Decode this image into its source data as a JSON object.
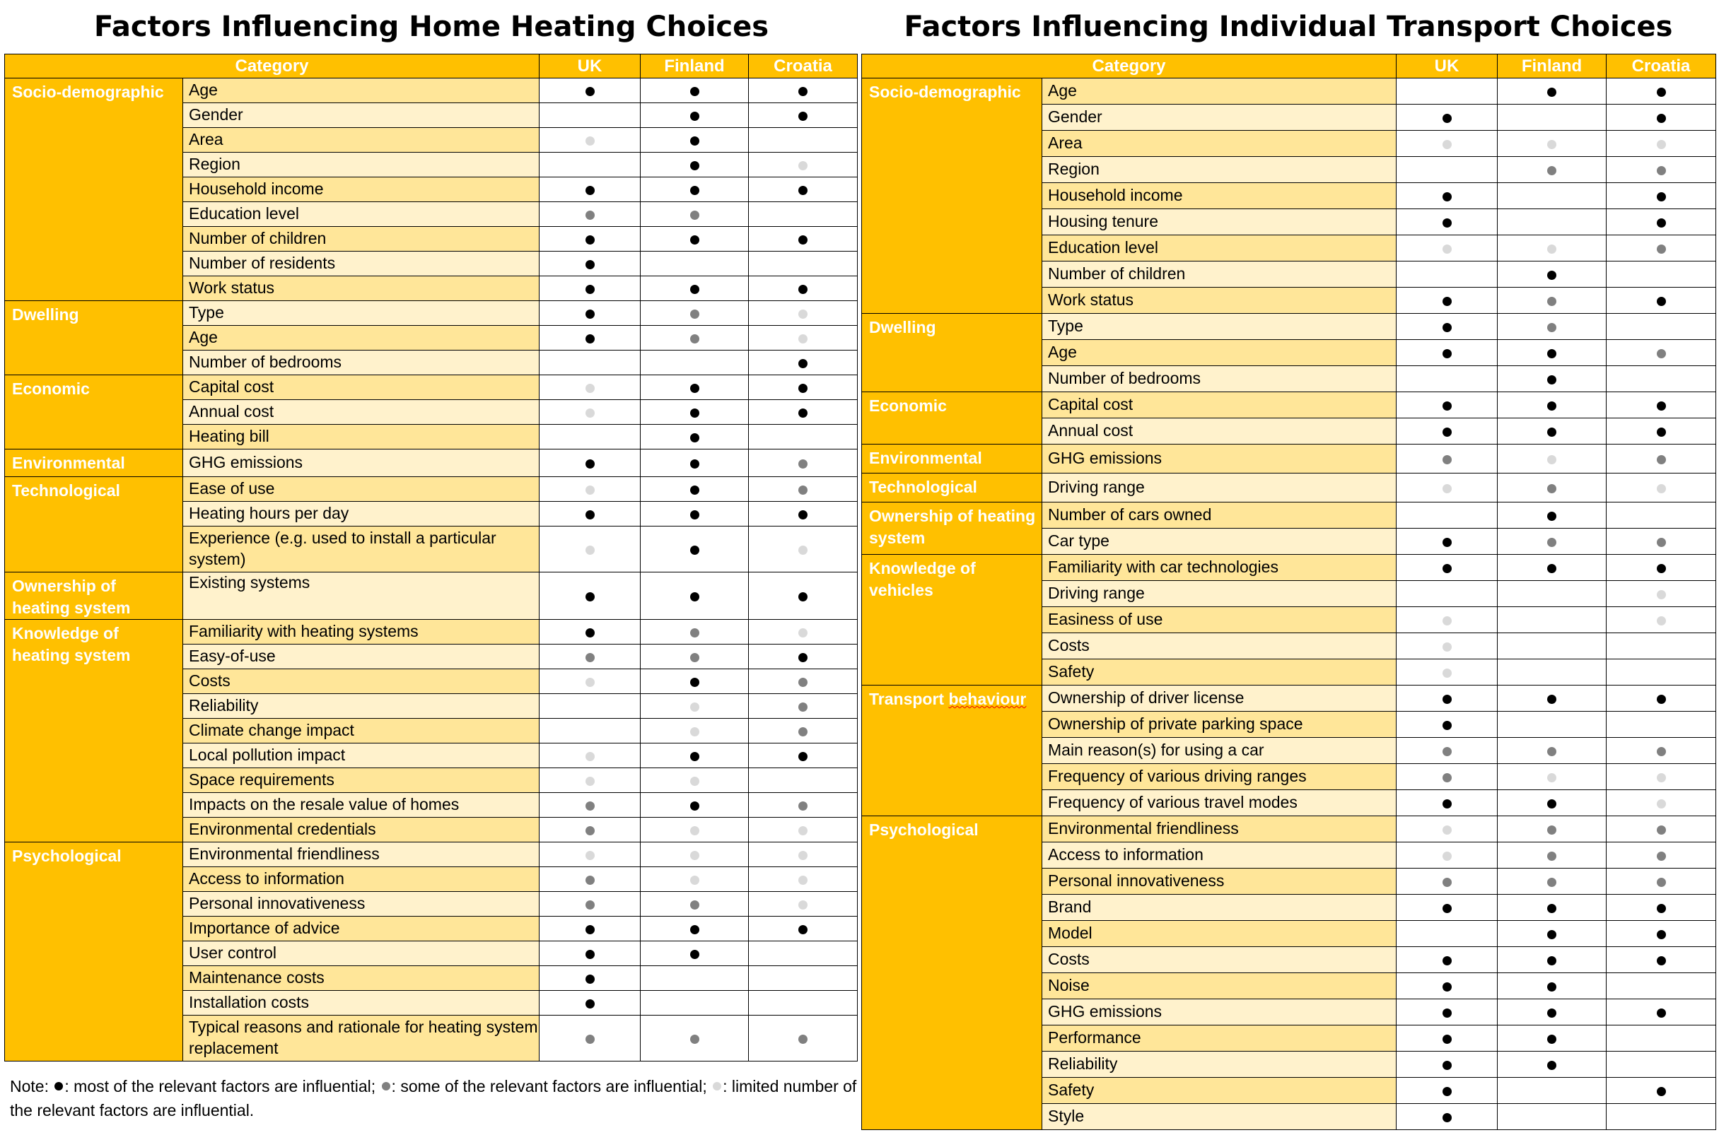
{
  "legend_colors": {
    "strong": "#000000",
    "medium": "#808080",
    "limited": "#D9D9D9"
  },
  "accent_color": "#FFC000",
  "heating": {
    "title": "Factors Influencing Home Heating Choices",
    "headers": {
      "category": "Category",
      "uk": "UK",
      "finland": "Finland",
      "croatia": "Croatia"
    },
    "groups": [
      {
        "category": "Socio-demographic",
        "rows": [
          {
            "factor": "Age",
            "marks": [
              "strong",
              "strong",
              "strong"
            ]
          },
          {
            "factor": "Gender",
            "marks": [
              "",
              "strong",
              "strong"
            ]
          },
          {
            "factor": "Area",
            "marks": [
              "limited",
              "strong",
              ""
            ]
          },
          {
            "factor": "Region",
            "marks": [
              "",
              "strong",
              "limited"
            ]
          },
          {
            "factor": "Household income",
            "marks": [
              "strong",
              "strong",
              "strong"
            ]
          },
          {
            "factor": "Education level",
            "marks": [
              "medium",
              "medium",
              ""
            ]
          },
          {
            "factor": "Number of children",
            "marks": [
              "strong",
              "strong",
              "strong"
            ]
          },
          {
            "factor": "Number of residents",
            "marks": [
              "strong",
              "",
              ""
            ]
          },
          {
            "factor": "Work status",
            "marks": [
              "strong",
              "strong",
              "strong"
            ]
          }
        ]
      },
      {
        "category": "Dwelling",
        "rows": [
          {
            "factor": "Type",
            "marks": [
              "strong",
              "medium",
              "limited"
            ]
          },
          {
            "factor": "Age",
            "marks": [
              "strong",
              "medium",
              "limited"
            ]
          },
          {
            "factor": "Number of bedrooms",
            "marks": [
              "",
              "",
              "strong"
            ]
          }
        ]
      },
      {
        "category": "Economic",
        "rows": [
          {
            "factor": "Capital cost",
            "marks": [
              "limited",
              "strong",
              "strong"
            ]
          },
          {
            "factor": "Annual cost",
            "marks": [
              "limited",
              "strong",
              "strong"
            ]
          },
          {
            "factor": "Heating bill",
            "marks": [
              "",
              "strong",
              ""
            ]
          }
        ]
      },
      {
        "category": "Environmental",
        "rows": [
          {
            "factor": "GHG emissions",
            "marks": [
              "strong",
              "strong",
              "medium"
            ]
          }
        ]
      },
      {
        "category": "Technological",
        "rows": [
          {
            "factor": "Ease of use",
            "marks": [
              "limited",
              "strong",
              "medium"
            ]
          },
          {
            "factor": "Heating hours per day",
            "marks": [
              "strong",
              "strong",
              "strong"
            ]
          },
          {
            "factor": "Experience (e.g. used to install a particular system)",
            "marks": [
              "limited",
              "strong",
              "limited"
            ],
            "tall": true
          }
        ]
      },
      {
        "category": "Ownership of heating system",
        "rows": [
          {
            "factor": "Existing systems",
            "marks": [
              "strong",
              "strong",
              "strong"
            ],
            "tall": true,
            "top": true
          }
        ]
      },
      {
        "category": "Knowledge of heating system",
        "rows": [
          {
            "factor": "Familiarity with heating systems",
            "marks": [
              "strong",
              "medium",
              "limited"
            ]
          },
          {
            "factor": "Easy-of-use",
            "marks": [
              "medium",
              "medium",
              "strong"
            ]
          },
          {
            "factor": "Costs",
            "marks": [
              "limited",
              "strong",
              "medium"
            ]
          },
          {
            "factor": "Reliability",
            "marks": [
              "",
              "limited",
              "medium"
            ]
          },
          {
            "factor": "Climate change impact",
            "marks": [
              "",
              "limited",
              "medium"
            ]
          },
          {
            "factor": "Local pollution impact",
            "marks": [
              "limited",
              "strong",
              "strong"
            ]
          },
          {
            "factor": "Space requirements",
            "marks": [
              "limited",
              "limited",
              ""
            ]
          },
          {
            "factor": "Impacts on the resale value of homes",
            "marks": [
              "medium",
              "strong",
              "medium"
            ]
          },
          {
            "factor": "Environmental credentials",
            "marks": [
              "medium",
              "limited",
              "limited"
            ]
          }
        ]
      },
      {
        "category": "Psychological",
        "rows": [
          {
            "factor": "Environmental friendliness",
            "marks": [
              "limited",
              "limited",
              "limited"
            ]
          },
          {
            "factor": "Access to information",
            "marks": [
              "medium",
              "limited",
              "limited"
            ]
          },
          {
            "factor": "Personal innovativeness",
            "marks": [
              "medium",
              "medium",
              "limited"
            ]
          },
          {
            "factor": "Importance of advice",
            "marks": [
              "strong",
              "strong",
              "strong"
            ]
          },
          {
            "factor": "User control",
            "marks": [
              "strong",
              "strong",
              ""
            ]
          },
          {
            "factor": "Maintenance costs",
            "marks": [
              "strong",
              "",
              ""
            ]
          },
          {
            "factor": "Installation costs",
            "marks": [
              "strong",
              "",
              ""
            ]
          },
          {
            "factor": "Typical reasons and rationale for heating system replacement",
            "marks": [
              "medium",
              "medium",
              "medium"
            ],
            "tall": true
          }
        ]
      }
    ],
    "note": {
      "prefix": "Note: ",
      "strong_text": ": most of the relevant factors are influential; ",
      "medium_text": ": some of the relevant factors are influential; ",
      "limited_text": ": limited number of the relevant factors are influential."
    }
  },
  "transport": {
    "title": "Factors Influencing Individual Transport Choices",
    "headers": {
      "category": "Category",
      "uk": "UK",
      "finland": "Finland",
      "croatia": "Croatia"
    },
    "groups": [
      {
        "category": "Socio-demographic",
        "rows": [
          {
            "factor": "Age",
            "marks": [
              "",
              "strong",
              "strong"
            ]
          },
          {
            "factor": "Gender",
            "marks": [
              "strong",
              "",
              "strong"
            ]
          },
          {
            "factor": "Area",
            "marks": [
              "limited",
              "limited",
              "limited"
            ]
          },
          {
            "factor": "Region",
            "marks": [
              "",
              "medium",
              "medium"
            ]
          },
          {
            "factor": "Household income",
            "marks": [
              "strong",
              "",
              "strong"
            ]
          },
          {
            "factor": "Housing tenure",
            "marks": [
              "strong",
              "",
              "strong"
            ]
          },
          {
            "factor": "Education level",
            "marks": [
              "limited",
              "limited",
              "medium"
            ]
          },
          {
            "factor": "Number of children",
            "marks": [
              "",
              "strong",
              ""
            ]
          },
          {
            "factor": "Work status",
            "marks": [
              "strong",
              "medium",
              "strong"
            ]
          }
        ]
      },
      {
        "category": "Dwelling",
        "rows": [
          {
            "factor": "Type",
            "marks": [
              "strong",
              "medium",
              ""
            ]
          },
          {
            "factor": "Age",
            "marks": [
              "strong",
              "strong",
              "medium"
            ]
          },
          {
            "factor": "Number of bedrooms",
            "marks": [
              "",
              "strong",
              ""
            ]
          }
        ]
      },
      {
        "category": "Economic",
        "rows": [
          {
            "factor": "Capital cost",
            "marks": [
              "strong",
              "strong",
              "strong"
            ]
          },
          {
            "factor": "Annual cost",
            "marks": [
              "strong",
              "strong",
              "strong"
            ]
          }
        ]
      },
      {
        "category": "Environmental",
        "rows": [
          {
            "factor": "GHG emissions",
            "marks": [
              "medium",
              "limited",
              "medium"
            ]
          }
        ]
      },
      {
        "category": "Technological",
        "rows": [
          {
            "factor": "Driving range",
            "marks": [
              "limited",
              "medium",
              "limited"
            ]
          }
        ]
      },
      {
        "category": "Ownership of heating system",
        "rows": [
          {
            "factor": "Number of cars owned",
            "marks": [
              "",
              "strong",
              ""
            ]
          },
          {
            "factor": "Car type",
            "marks": [
              "strong",
              "medium",
              "medium"
            ]
          }
        ]
      },
      {
        "category": "Knowledge of vehicles",
        "rows": [
          {
            "factor": "Familiarity with car technologies",
            "marks": [
              "strong",
              "strong",
              "strong"
            ]
          },
          {
            "factor": "Driving range",
            "marks": [
              "",
              "",
              "limited"
            ]
          },
          {
            "factor": "Easiness of use",
            "marks": [
              "limited",
              "",
              "limited"
            ]
          },
          {
            "factor": "Costs",
            "marks": [
              "limited",
              "",
              ""
            ]
          },
          {
            "factor": "Safety",
            "marks": [
              "limited",
              "",
              ""
            ]
          }
        ]
      },
      {
        "category": "Transport behaviour",
        "squiggle": "behaviour",
        "rows": [
          {
            "factor": "Ownership of driver license",
            "marks": [
              "strong",
              "strong",
              "strong"
            ]
          },
          {
            "factor": "Ownership of private parking space",
            "marks": [
              "strong",
              "",
              ""
            ]
          },
          {
            "factor": "Main reason(s) for using a car",
            "marks": [
              "medium",
              "medium",
              "medium"
            ]
          },
          {
            "factor": "Frequency of various driving ranges",
            "marks": [
              "medium",
              "limited",
              "limited"
            ]
          },
          {
            "factor": "Frequency of various travel modes",
            "marks": [
              "strong",
              "strong",
              "limited"
            ]
          }
        ]
      },
      {
        "category": "Psychological",
        "rows": [
          {
            "factor": "Environmental friendliness",
            "marks": [
              "limited",
              "medium",
              "medium"
            ]
          },
          {
            "factor": "Access to information",
            "marks": [
              "limited",
              "medium",
              "medium"
            ]
          },
          {
            "factor": "Personal innovativeness",
            "marks": [
              "medium",
              "medium",
              "medium"
            ]
          },
          {
            "factor": "Brand",
            "marks": [
              "strong",
              "strong",
              "strong"
            ]
          },
          {
            "factor": "Model",
            "marks": [
              "",
              "strong",
              "strong"
            ]
          },
          {
            "factor": "Costs",
            "marks": [
              "strong",
              "strong",
              "strong"
            ]
          },
          {
            "factor": "Noise",
            "marks": [
              "strong",
              "strong",
              ""
            ]
          },
          {
            "factor": "GHG emissions",
            "marks": [
              "strong",
              "strong",
              "strong"
            ]
          },
          {
            "factor": "Performance",
            "marks": [
              "strong",
              "strong",
              ""
            ]
          },
          {
            "factor": "Reliability",
            "marks": [
              "strong",
              "strong",
              ""
            ]
          },
          {
            "factor": "Safety",
            "marks": [
              "strong",
              "",
              "strong"
            ]
          },
          {
            "factor": "Style",
            "marks": [
              "strong",
              "",
              ""
            ]
          }
        ]
      }
    ]
  }
}
